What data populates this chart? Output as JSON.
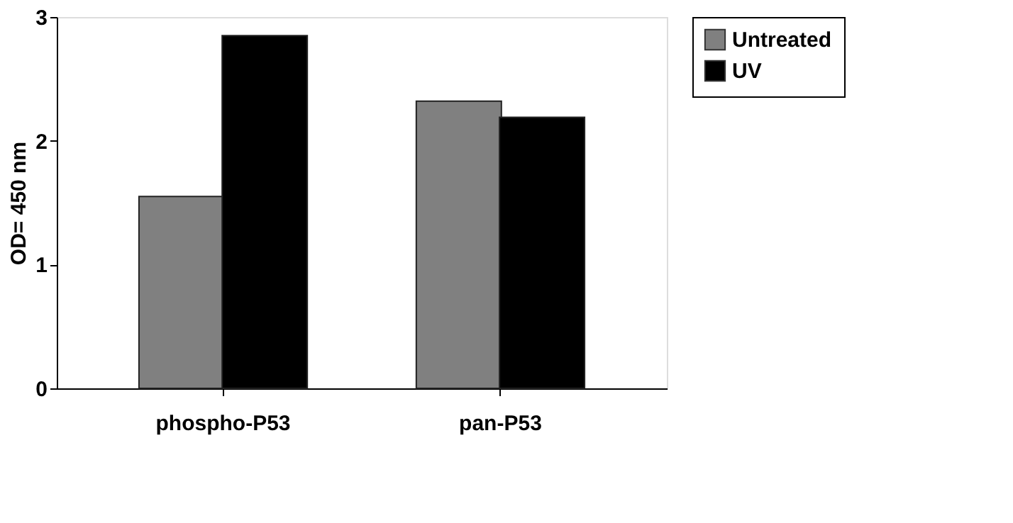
{
  "chart_data": {
    "type": "bar",
    "ylabel": "OD= 450 nm",
    "categories": [
      "phospho-P53",
      "pan-P53"
    ],
    "series": [
      {
        "name": "Untreated",
        "color": "#808080",
        "values": [
          1.55,
          2.32
        ]
      },
      {
        "name": "UV",
        "color": "#000000",
        "values": [
          2.85,
          2.19
        ]
      }
    ],
    "ylim": [
      0,
      3
    ],
    "yticks": [
      0,
      1,
      2,
      3
    ],
    "grid": false,
    "legend": "right"
  }
}
